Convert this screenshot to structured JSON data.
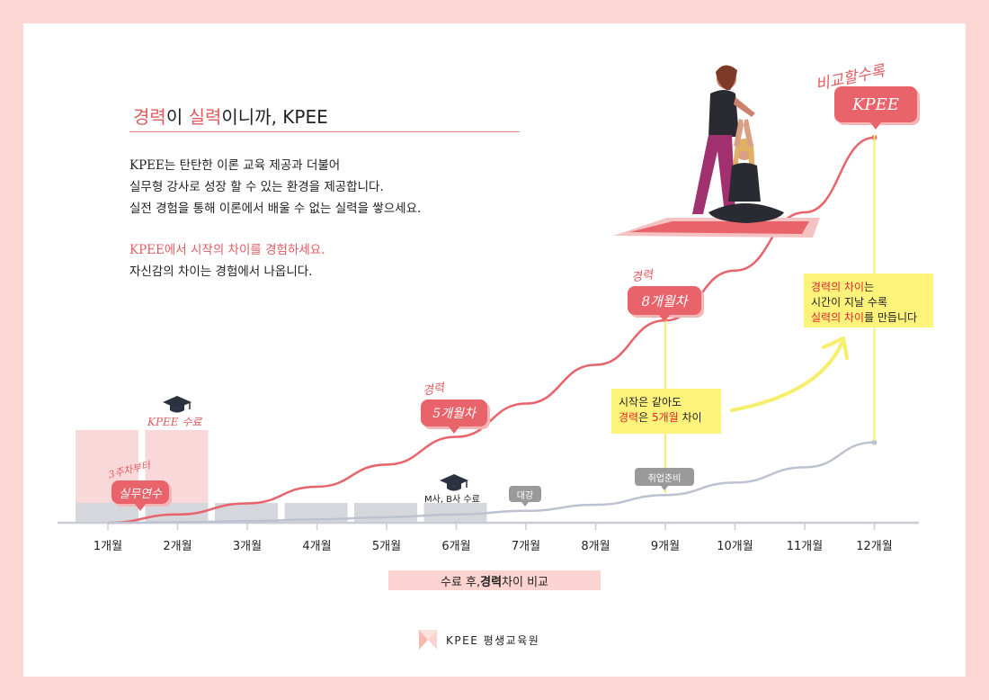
{
  "headline": {
    "word1": "경력",
    "word2": "이 ",
    "word3": "실력",
    "word4": "이니까, KPEE"
  },
  "intro": {
    "line1": "KPEE는 탄탄한 이론 교육 제공과 더불어",
    "line2": "실무형 강사로 성장 할 수 있는 환경을 제공합니다.",
    "line3": "실전 경험을 통해 이론에서 배울 수 없는 실력을 쌓으세요.",
    "line4": "KPEE에서 시작의 차이를 경험하세요.",
    "line5": "자신감의 차이는 경험에서 나옵니다."
  },
  "tags": {
    "practice_caption": "3주차부터",
    "practice_label": "실무연수",
    "kpee_done": "KPEE 수료",
    "m5_caption": "경력",
    "m5_label": "5개월차",
    "m8_caption": "경력",
    "m8_label": "8개월차",
    "top_caption": "비교할수록",
    "top_label": "KPEE",
    "mb_done": "M사, B사 수료",
    "daegang": "대강",
    "job_prep": "취업준비"
  },
  "notes": {
    "start": {
      "l1": "시작은 같아도",
      "l2a": "경력",
      "l2b": "은 ",
      "l2c": "5개월",
      "l2d": " 차이"
    },
    "diff": {
      "l1a": "경력의 차이",
      "l1b": "는",
      "l2": "시간이 지날 수록",
      "l3a": "실력의 차이",
      "l3b": "를 만듭니다"
    }
  },
  "caption": {
    "a": "수료 후, ",
    "b": "경력",
    "c": " 차이 비교"
  },
  "footer": {
    "brand": "KPEE  평생교육원"
  },
  "colors": {
    "accent": "#e8636a",
    "accent_light": "#f9d8d9",
    "gray_bar": "#d5d7dd",
    "gray_line": "#bcc2cf",
    "note_bg": "#fdf37a",
    "frame": "#fbd6d2"
  },
  "chart_data": {
    "type": "line",
    "categories": [
      "1개월",
      "2개월",
      "3개월",
      "4개월",
      "5개월",
      "6개월",
      "7개월",
      "8개월",
      "9개월",
      "10개월",
      "11개월",
      "12개월"
    ],
    "series": [
      {
        "values": [
          0,
          3,
          7,
          13,
          21,
          31,
          43,
          57,
          73,
          91,
          112,
          139
        ]
      },
      {
        "values": [
          0,
          0.2,
          0.6,
          1.2,
          2,
          3,
          4.3,
          6.5,
          10,
          14.5,
          20,
          29
        ]
      }
    ],
    "bars": {
      "pink": [
        1,
        1,
        0,
        0,
        0,
        0,
        0,
        0,
        0,
        0,
        0,
        0
      ],
      "gray": [
        1,
        1,
        1,
        1,
        1,
        1,
        0,
        0,
        0,
        0,
        0,
        0
      ]
    },
    "grid": false,
    "legend": "none"
  }
}
